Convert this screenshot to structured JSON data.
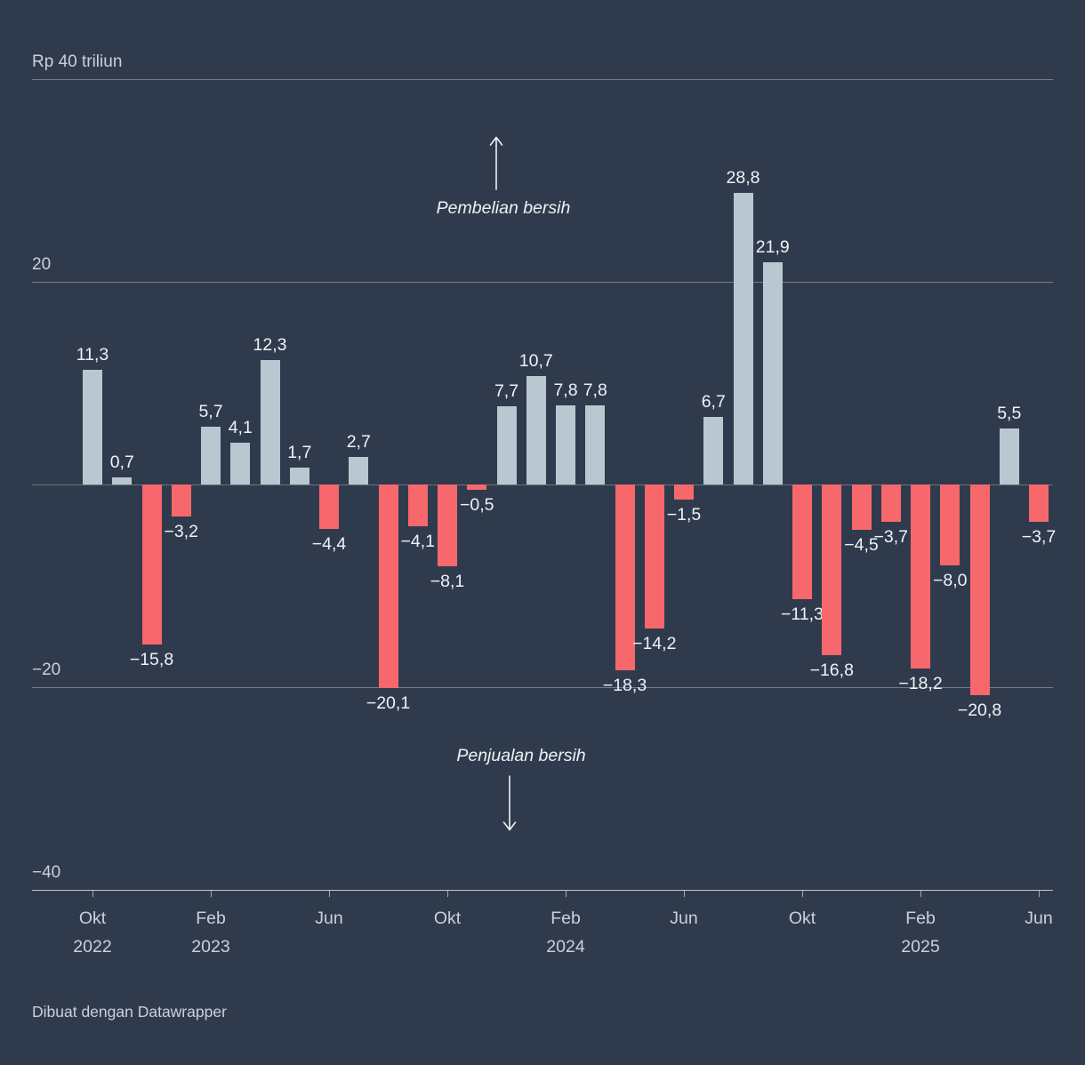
{
  "colors": {
    "background": "#2f3b4d",
    "positive": "#b9c7d1",
    "negative": "#f7686c",
    "label": "#eef2f5",
    "axis-text": "#c9d1d8"
  },
  "chart_data": {
    "type": "bar",
    "title": "",
    "ylabel": "Rp triliun",
    "ylim": [
      -40,
      40
    ],
    "grid": true,
    "values": [
      11.3,
      0.7,
      -15.8,
      -3.2,
      5.7,
      4.1,
      12.3,
      1.7,
      -4.4,
      2.7,
      -20.1,
      -4.1,
      -8.1,
      -0.5,
      7.7,
      10.7,
      7.8,
      7.8,
      -18.3,
      -14.2,
      -1.5,
      6.7,
      28.8,
      21.9,
      -11.3,
      -16.8,
      -4.5,
      -3.7,
      -18.2,
      -8.0,
      -20.8,
      5.5,
      -3.7
    ],
    "value_labels": [
      "11,3",
      "0,7",
      "−15,8",
      "−3,2",
      "5,7",
      "4,1",
      "12,3",
      "1,7",
      "−4,4",
      "2,7",
      "−20,1",
      "−4,1",
      "−8,1",
      "−0,5",
      "7,7",
      "10,7",
      "7,8",
      "7,8",
      "−18,3",
      "−14,2",
      "−1,5",
      "6,7",
      "28,8",
      "21,9",
      "−11,3",
      "−16,8",
      "−4,5",
      "−3,7",
      "−18,2",
      "−8,0",
      "−20,8",
      "5,5",
      "−3,7"
    ],
    "y_ticks": [
      {
        "value": 40,
        "label": "Rp 40 triliun"
      },
      {
        "value": 20,
        "label": "20"
      },
      {
        "value": -20,
        "label": "−20"
      },
      {
        "value": -40,
        "label": "−40"
      }
    ],
    "x_ticks": [
      {
        "index": 0,
        "month": "Okt",
        "year": "2022"
      },
      {
        "index": 4,
        "month": "Feb",
        "year": "2023"
      },
      {
        "index": 8,
        "month": "Jun",
        "year": ""
      },
      {
        "index": 12,
        "month": "Okt",
        "year": ""
      },
      {
        "index": 16,
        "month": "Feb",
        "year": "2024"
      },
      {
        "index": 20,
        "month": "Jun",
        "year": ""
      },
      {
        "index": 24,
        "month": "Okt",
        "year": ""
      },
      {
        "index": 28,
        "month": "Feb",
        "year": "2025"
      },
      {
        "index": 32,
        "month": "Jun",
        "year": ""
      }
    ],
    "annotations": {
      "positive": "Pembelian bersih",
      "negative": "Penjualan bersih"
    }
  },
  "footer": {
    "credit": "Dibuat dengan Datawrapper"
  }
}
